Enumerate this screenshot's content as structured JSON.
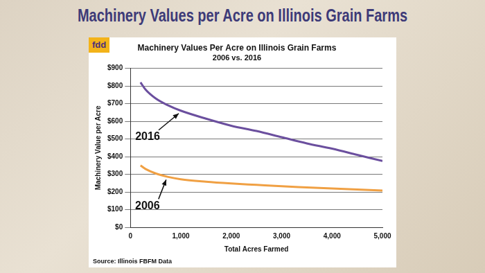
{
  "heading": "Machinery Values per Acre on Illinois Grain Farms",
  "logo": "fdd",
  "chart_data": {
    "type": "line",
    "title": "Machinery Values Per Acre on Illinois Grain Farms",
    "subtitle": "2006 vs. 2016",
    "x_label": "Total Acres Farmed",
    "y_label": "Machinery Value per Acre",
    "source": "Source: Illinois FBFM Data",
    "x": [
      200,
      300,
      500,
      750,
      1000,
      1500,
      2000,
      2500,
      3000,
      3500,
      4000,
      4500,
      5000
    ],
    "series": [
      {
        "name": "2016",
        "color": "#6b4f9e",
        "values": [
          820,
          780,
          730,
          690,
          660,
          615,
          575,
          545,
          510,
          475,
          445,
          410,
          375
        ]
      },
      {
        "name": "2006",
        "color": "#f0a043",
        "values": [
          350,
          330,
          305,
          285,
          272,
          258,
          248,
          240,
          232,
          226,
          220,
          214,
          208
        ]
      }
    ],
    "xlim": [
      0,
      5000
    ],
    "xticks": [
      0,
      {
        "value": 1000,
        "label": "1,000"
      },
      {
        "value": 2000,
        "label": "2,000"
      },
      {
        "value": 3000,
        "label": "3,000"
      },
      {
        "value": 4000,
        "label": "4,000"
      },
      {
        "value": 5000,
        "label": "5,000"
      }
    ],
    "ylim": [
      0,
      900
    ],
    "yticks": [
      {
        "value": 0,
        "label": "$0"
      },
      {
        "value": 100,
        "label": "$100"
      },
      {
        "value": 200,
        "label": "$200"
      },
      {
        "value": 300,
        "label": "$300"
      },
      {
        "value": 400,
        "label": "$400"
      },
      {
        "value": 500,
        "label": "$500"
      },
      {
        "value": 600,
        "label": "$600"
      },
      {
        "value": 700,
        "label": "$700"
      },
      {
        "value": 800,
        "label": "$800"
      },
      {
        "value": 900,
        "label": "$900"
      }
    ],
    "grid": "y"
  }
}
